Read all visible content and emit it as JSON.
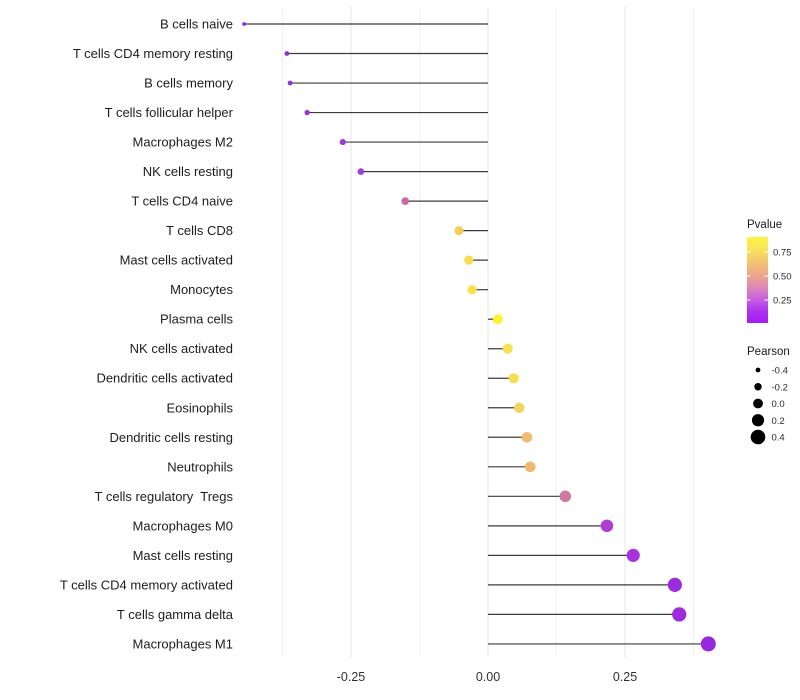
{
  "chart_data": {
    "type": "lollipop",
    "title": "",
    "xlabel": "",
    "ylabel": "",
    "xlim": [
      -0.46,
      0.42
    ],
    "grid": "vertical-only",
    "x_axis": {
      "ticks": [
        -0.25,
        0.0,
        0.25
      ],
      "tick_labels": [
        "-0.25",
        "0.00",
        "0.25"
      ],
      "minor_gridlines": [
        -0.375,
        -0.125,
        0.125,
        0.375
      ]
    },
    "points": [
      {
        "label": "B cells naive",
        "pearson": -0.445,
        "color": "#8c2bd2"
      },
      {
        "label": "T cells CD4 memory resting",
        "pearson": -0.367,
        "color": "#9132d6"
      },
      {
        "label": "B cells memory",
        "pearson": -0.361,
        "color": "#9132d6"
      },
      {
        "label": "T cells follicular helper",
        "pearson": -0.33,
        "color": "#9636d7"
      },
      {
        "label": "Macrophages M2",
        "pearson": -0.265,
        "color": "#9b3ad5"
      },
      {
        "label": "NK cells resting",
        "pearson": -0.232,
        "color": "#9f40d2"
      },
      {
        "label": "T cells CD4 naive",
        "pearson": -0.151,
        "color": "#cb69ae"
      },
      {
        "label": "T cells CD8",
        "pearson": -0.053,
        "color": "#f3d054"
      },
      {
        "label": "Mast cells activated",
        "pearson": -0.035,
        "color": "#f7de51"
      },
      {
        "label": "Monocytes",
        "pearson": -0.029,
        "color": "#f8e150"
      },
      {
        "label": "Plasma cells",
        "pearson": 0.018,
        "color": "#fdf32e"
      },
      {
        "label": "NK cells activated",
        "pearson": 0.036,
        "color": "#f7e14e"
      },
      {
        "label": "Dendritic cells activated",
        "pearson": 0.047,
        "color": "#f6dd55"
      },
      {
        "label": "Eosinophils",
        "pearson": 0.057,
        "color": "#f3d45e"
      },
      {
        "label": "Dendritic cells resting",
        "pearson": 0.071,
        "color": "#f0bc72"
      },
      {
        "label": "Neutrophils",
        "pearson": 0.077,
        "color": "#efb96e"
      },
      {
        "label": "T cells regulatory  Tregs",
        "pearson": 0.141,
        "color": "#d0789f"
      },
      {
        "label": "Macrophages M0",
        "pearson": 0.217,
        "color": "#ae3ed0"
      },
      {
        "label": "Mast cells resting",
        "pearson": 0.265,
        "color": "#a832dd"
      },
      {
        "label": "T cells CD4 memory activated",
        "pearson": 0.341,
        "color": "#9d2cdd"
      },
      {
        "label": "T cells gamma delta",
        "pearson": 0.349,
        "color": "#9d2cdd"
      },
      {
        "label": "Macrophages M1",
        "pearson": 0.402,
        "color": "#9827e0"
      }
    ],
    "legends": {
      "pvalue": {
        "title": "Pvalue",
        "tick_labels": [
          "0.75",
          "0.50",
          "0.25"
        ],
        "gradient_stops": [
          {
            "offset": "0%",
            "color": "#fcf441"
          },
          {
            "offset": "14%",
            "color": "#f9e35b"
          },
          {
            "offset": "30%",
            "color": "#f2c373"
          },
          {
            "offset": "46%",
            "color": "#eba28e"
          },
          {
            "offset": "60%",
            "color": "#dd84bb"
          },
          {
            "offset": "74%",
            "color": "#c45ae2"
          },
          {
            "offset": "87%",
            "color": "#ad30f1"
          },
          {
            "offset": "100%",
            "color": "#a51cf3"
          }
        ]
      },
      "pearson": {
        "title": "Pearson",
        "entries": [
          {
            "label": "-0.4",
            "radius": 2.4
          },
          {
            "label": "-0.2",
            "radius": 3.7
          },
          {
            "label": "0.0",
            "radius": 4.9
          },
          {
            "label": "0.2",
            "radius": 6.1
          },
          {
            "label": "0.4",
            "radius": 7.3
          }
        ]
      }
    },
    "colors": {
      "stem": "#3b3b3b",
      "major_gridline": "#e7e7e7",
      "minor_gridline": "#f2f2f2",
      "axis_text": "#303030",
      "label_text": "#1d1d1d",
      "legend_text": "#2b2b2b"
    }
  }
}
